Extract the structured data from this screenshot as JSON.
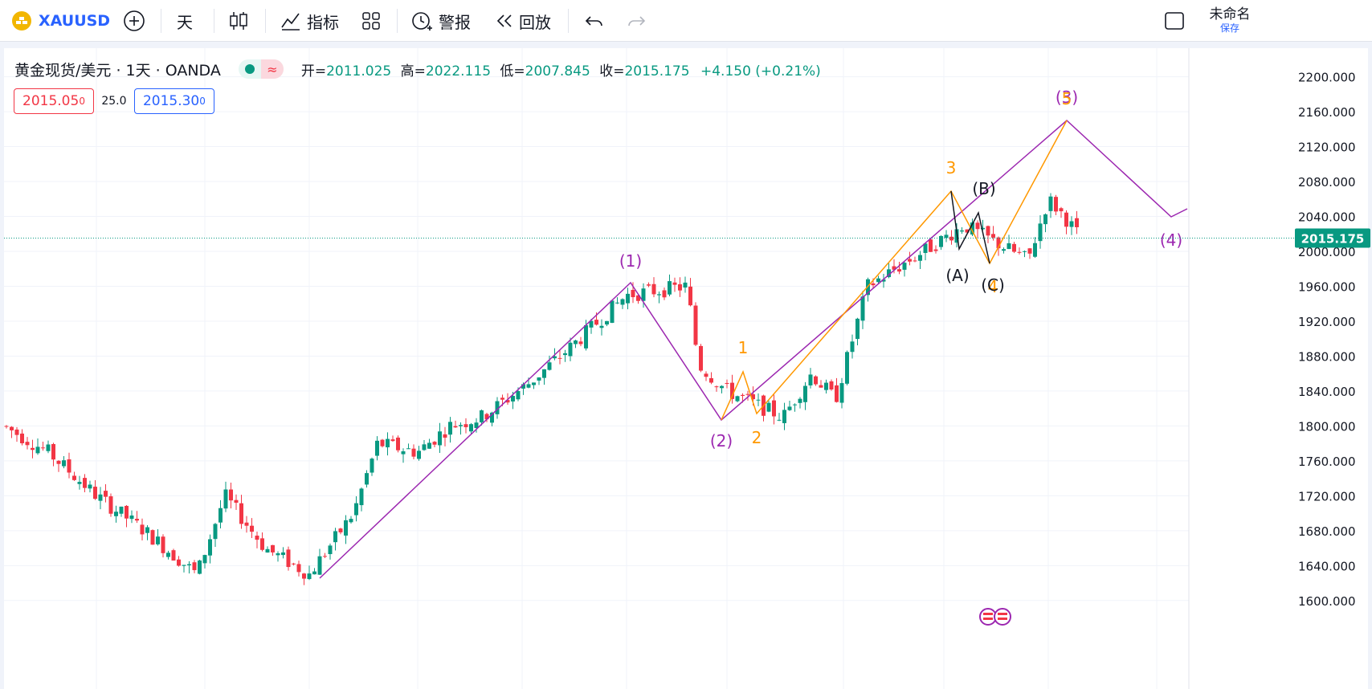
{
  "toolbar": {
    "symbol": "XAUUSD",
    "interval": "天",
    "indicators_label": "指标",
    "alert_label": "警报",
    "replay_label": "回放",
    "layout_name": "未命名",
    "save_label": "保存"
  },
  "legend": {
    "title": "黄金现货/美元 · 1天 · OANDA",
    "open_label": "开=",
    "open": "2011.025",
    "high_label": "高=",
    "high": "2022.115",
    "low_label": "低=",
    "low": "2007.845",
    "close_label": "收=",
    "close": "2015.175",
    "change": "+4.150 (+0.21%)"
  },
  "trade": {
    "sell_price": "2015.05",
    "sell_sup": "0",
    "spread": "25.0",
    "buy_price": "2015.30",
    "buy_sup": "0"
  },
  "price_axis": {
    "labels": [
      "2200.000",
      "2160.000",
      "2120.000",
      "2080.000",
      "2040.000",
      "2000.000",
      "1960.000",
      "1920.000",
      "1880.000",
      "1840.000",
      "1800.000",
      "1760.000",
      "1720.000",
      "1680.000",
      "1640.000",
      "1600.000"
    ],
    "current_price": "2015.175"
  },
  "waves": {
    "purple": [
      "(1)",
      "(2)",
      "(3)",
      "(4)"
    ],
    "orange": [
      "1",
      "2",
      "3",
      "4",
      "5"
    ],
    "black": [
      "(A)",
      "(B)",
      "(C)"
    ]
  },
  "colors": {
    "up": "#089981",
    "down": "#f23645",
    "purple": "#9c27b0",
    "orange": "#ff9800",
    "accent": "#2962ff",
    "symbol": "#2962ff"
  }
}
